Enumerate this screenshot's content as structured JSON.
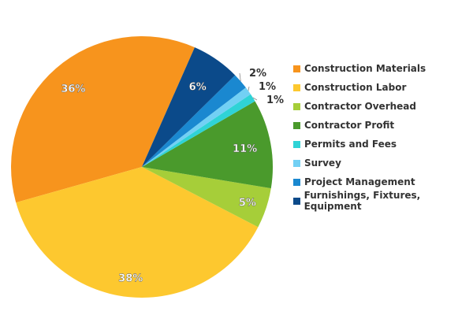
{
  "chart_data": {
    "type": "pie",
    "unit": "%",
    "legend_position": "right",
    "slices": [
      {
        "label": "Construction Materials",
        "value": 36,
        "color": "#f7941d"
      },
      {
        "label": "Construction Labor",
        "value": 38,
        "color": "#fdc82f"
      },
      {
        "label": "Contractor Overhead",
        "value": 5,
        "color": "#a6ce39"
      },
      {
        "label": "Contractor Profit",
        "value": 11,
        "color": "#4a9a2c"
      },
      {
        "label": "Permits and Fees",
        "value": 1,
        "color": "#2fd3d6"
      },
      {
        "label": "Survey",
        "value": 1,
        "color": "#72d0f4"
      },
      {
        "label": "Project Management",
        "value": 2,
        "color": "#1a88d0"
      },
      {
        "label": "Furnishings, Fixtures, Equipment",
        "value": 6,
        "color": "#0b4a8a"
      }
    ]
  }
}
